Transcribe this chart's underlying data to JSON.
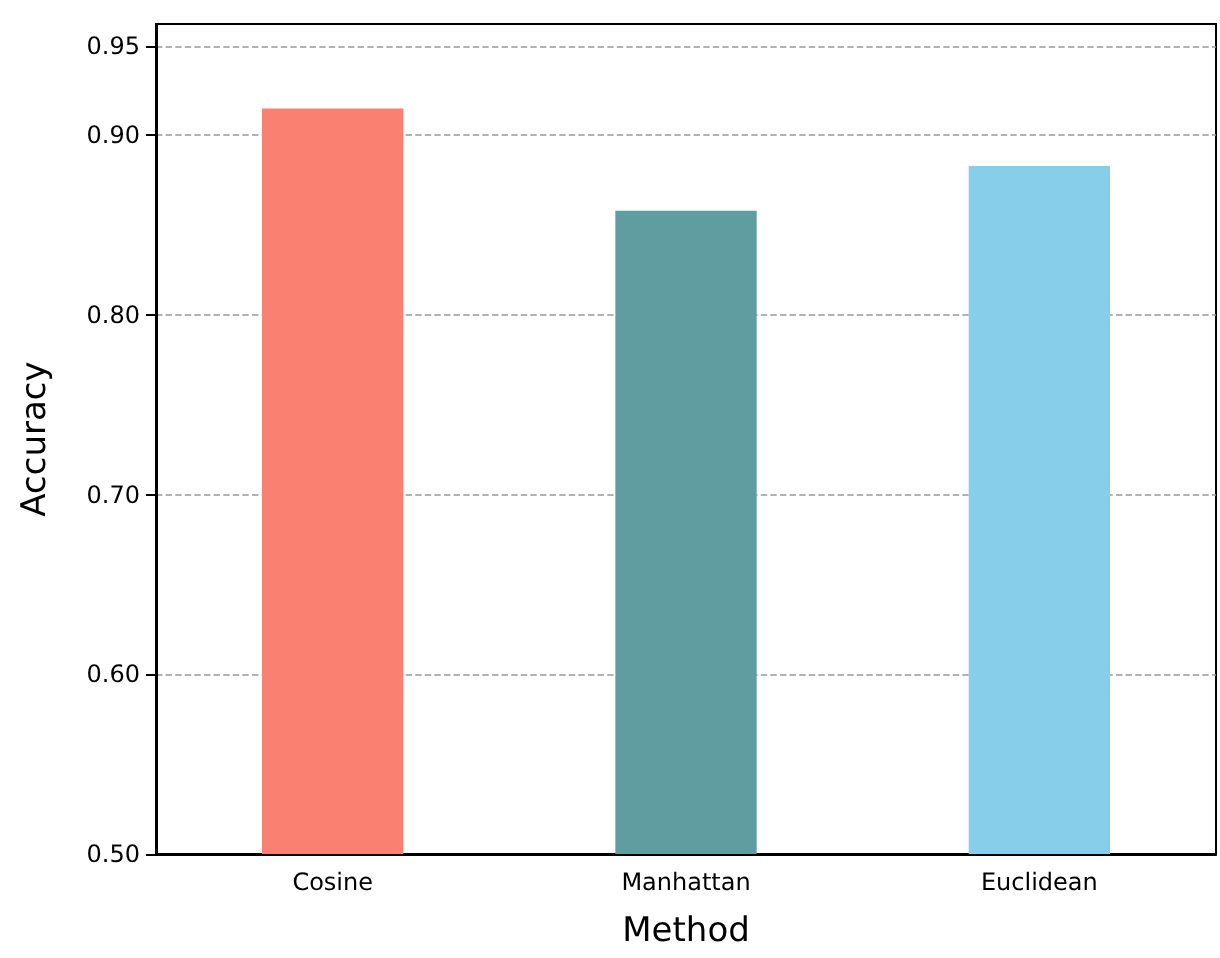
{
  "chart_data": {
    "type": "bar",
    "xlabel": "Method",
    "ylabel": "Accuracy",
    "categories": [
      "Cosine",
      "Manhattan",
      "Euclidean"
    ],
    "values": [
      0.915,
      0.858,
      0.883
    ],
    "colors": [
      "#fa8072",
      "#5f9ea0",
      "#87ceeb"
    ],
    "ylim": [
      0.5,
      0.962
    ],
    "yticks": [
      {
        "value": 0.5,
        "label": "0.50"
      },
      {
        "value": 0.6,
        "label": "0.60"
      },
      {
        "value": 0.7,
        "label": "0.70"
      },
      {
        "value": 0.8,
        "label": "0.80"
      },
      {
        "value": 0.9,
        "label": "0.90"
      },
      {
        "value": 0.95,
        "label": "0.95"
      }
    ],
    "grid": "y"
  }
}
